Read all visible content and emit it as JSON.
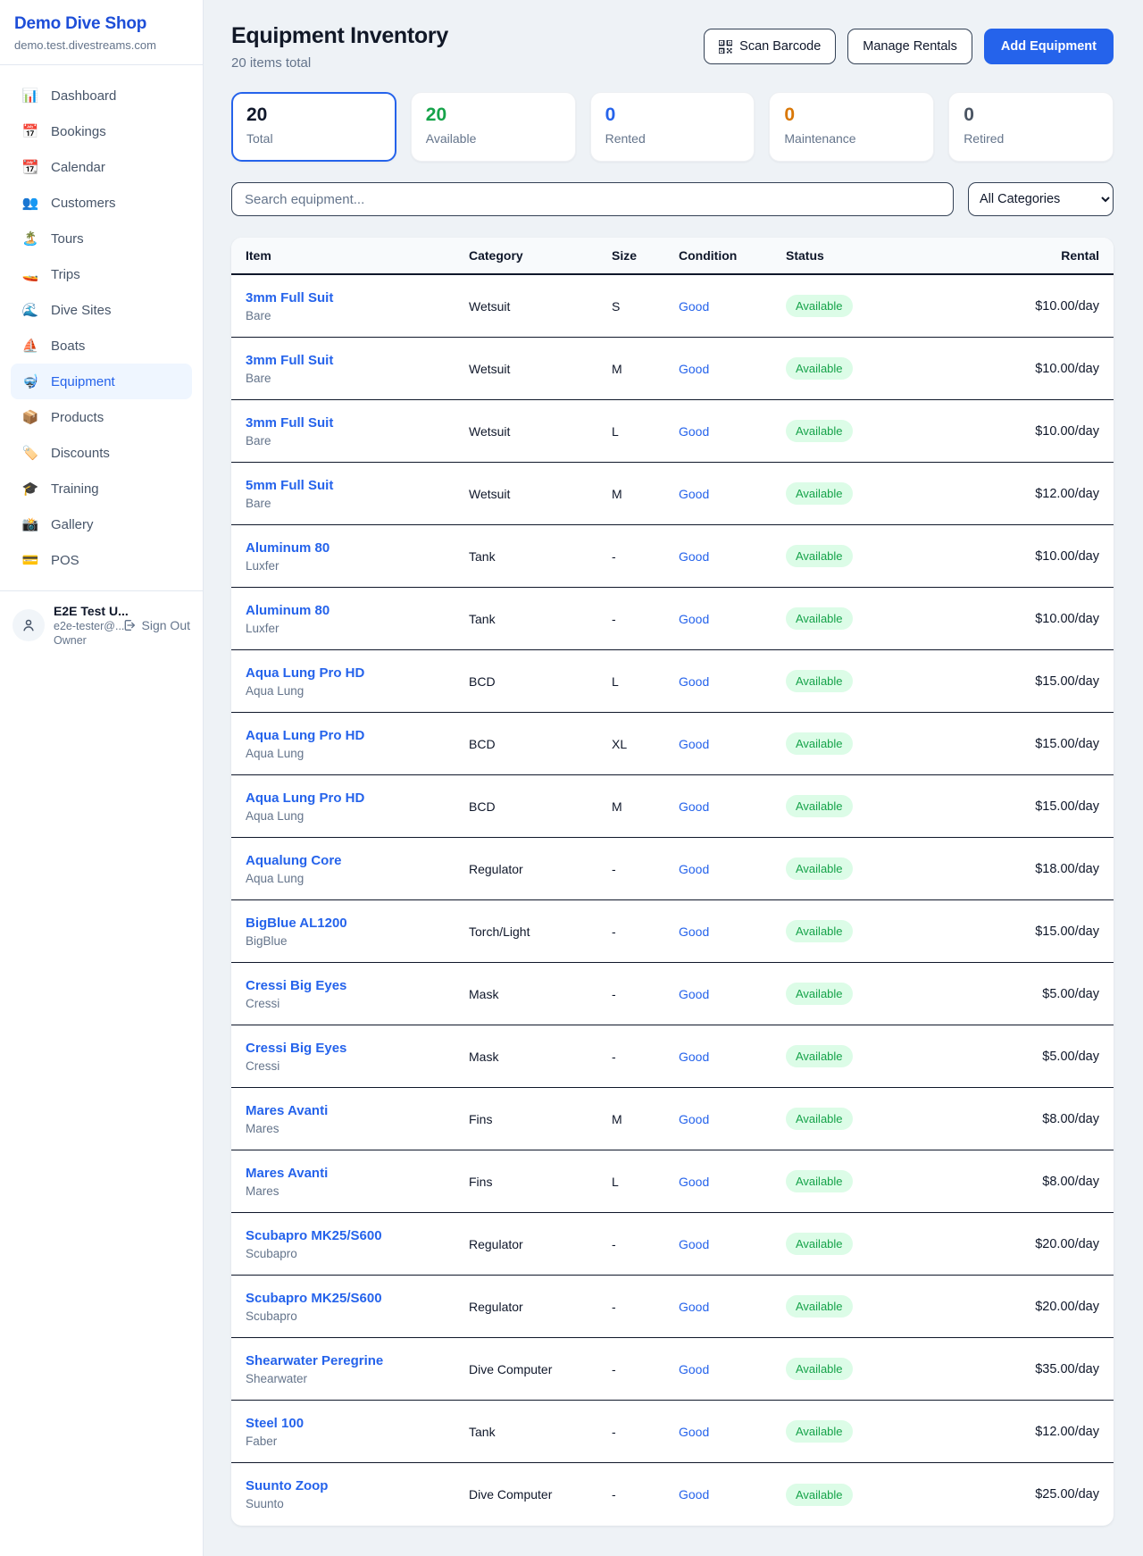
{
  "sidebar": {
    "brand": {
      "name": "Demo Dive Shop",
      "domain": "demo.test.divestreams.com"
    },
    "items": [
      {
        "label": "Dashboard",
        "icon": "dashboard-icon",
        "glyph": "📊",
        "active": false
      },
      {
        "label": "Bookings",
        "icon": "bookings-icon",
        "glyph": "📅",
        "active": false
      },
      {
        "label": "Calendar",
        "icon": "calendar-icon",
        "glyph": "📆",
        "active": false
      },
      {
        "label": "Customers",
        "icon": "customers-icon",
        "glyph": "👥",
        "active": false
      },
      {
        "label": "Tours",
        "icon": "tours-icon",
        "glyph": "🏝️",
        "active": false
      },
      {
        "label": "Trips",
        "icon": "trips-icon",
        "glyph": "🚤",
        "active": false
      },
      {
        "label": "Dive Sites",
        "icon": "dive-sites-icon",
        "glyph": "🌊",
        "active": false
      },
      {
        "label": "Boats",
        "icon": "boats-icon",
        "glyph": "⛵",
        "active": false
      },
      {
        "label": "Equipment",
        "icon": "equipment-icon",
        "glyph": "🤿",
        "active": true
      },
      {
        "label": "Products",
        "icon": "products-icon",
        "glyph": "📦",
        "active": false
      },
      {
        "label": "Discounts",
        "icon": "discounts-icon",
        "glyph": "🏷️",
        "active": false
      },
      {
        "label": "Training",
        "icon": "training-icon",
        "glyph": "🎓",
        "active": false
      },
      {
        "label": "Gallery",
        "icon": "gallery-icon",
        "glyph": "📸",
        "active": false
      },
      {
        "label": "POS",
        "icon": "pos-icon",
        "glyph": "💳",
        "active": false
      }
    ],
    "user": {
      "name": "E2E Test U...",
      "email": "e2e-tester@...",
      "role": "Owner",
      "sign_out_label": "Sign Out"
    }
  },
  "header": {
    "title": "Equipment Inventory",
    "subtitle": "20 items total",
    "scan_button": "Scan Barcode",
    "manage_button": "Manage Rentals",
    "add_button": "Add Equipment"
  },
  "stats": [
    {
      "value": "20",
      "label": "Total",
      "color": "#0f172a",
      "selected": true
    },
    {
      "value": "20",
      "label": "Available",
      "color": "#16a34a",
      "selected": false
    },
    {
      "value": "0",
      "label": "Rented",
      "color": "#2563eb",
      "selected": false
    },
    {
      "value": "0",
      "label": "Maintenance",
      "color": "#d97706",
      "selected": false
    },
    {
      "value": "0",
      "label": "Retired",
      "color": "#4b5563",
      "selected": false
    }
  ],
  "filters": {
    "search_placeholder": "Search equipment...",
    "category_selected": "All Categories"
  },
  "table": {
    "columns": [
      "Item",
      "Category",
      "Size",
      "Condition",
      "Status",
      "Rental"
    ],
    "rows": [
      {
        "item": "3mm Full Suit",
        "brand": "Bare",
        "category": "Wetsuit",
        "size": "S",
        "condition": "Good",
        "status": "Available",
        "rental": "$10.00/day"
      },
      {
        "item": "3mm Full Suit",
        "brand": "Bare",
        "category": "Wetsuit",
        "size": "M",
        "condition": "Good",
        "status": "Available",
        "rental": "$10.00/day"
      },
      {
        "item": "3mm Full Suit",
        "brand": "Bare",
        "category": "Wetsuit",
        "size": "L",
        "condition": "Good",
        "status": "Available",
        "rental": "$10.00/day"
      },
      {
        "item": "5mm Full Suit",
        "brand": "Bare",
        "category": "Wetsuit",
        "size": "M",
        "condition": "Good",
        "status": "Available",
        "rental": "$12.00/day"
      },
      {
        "item": "Aluminum 80",
        "brand": "Luxfer",
        "category": "Tank",
        "size": "-",
        "condition": "Good",
        "status": "Available",
        "rental": "$10.00/day"
      },
      {
        "item": "Aluminum 80",
        "brand": "Luxfer",
        "category": "Tank",
        "size": "-",
        "condition": "Good",
        "status": "Available",
        "rental": "$10.00/day"
      },
      {
        "item": "Aqua Lung Pro HD",
        "brand": "Aqua Lung",
        "category": "BCD",
        "size": "L",
        "condition": "Good",
        "status": "Available",
        "rental": "$15.00/day"
      },
      {
        "item": "Aqua Lung Pro HD",
        "brand": "Aqua Lung",
        "category": "BCD",
        "size": "XL",
        "condition": "Good",
        "status": "Available",
        "rental": "$15.00/day"
      },
      {
        "item": "Aqua Lung Pro HD",
        "brand": "Aqua Lung",
        "category": "BCD",
        "size": "M",
        "condition": "Good",
        "status": "Available",
        "rental": "$15.00/day"
      },
      {
        "item": "Aqualung Core",
        "brand": "Aqua Lung",
        "category": "Regulator",
        "size": "-",
        "condition": "Good",
        "status": "Available",
        "rental": "$18.00/day"
      },
      {
        "item": "BigBlue AL1200",
        "brand": "BigBlue",
        "category": "Torch/Light",
        "size": "-",
        "condition": "Good",
        "status": "Available",
        "rental": "$15.00/day"
      },
      {
        "item": "Cressi Big Eyes",
        "brand": "Cressi",
        "category": "Mask",
        "size": "-",
        "condition": "Good",
        "status": "Available",
        "rental": "$5.00/day"
      },
      {
        "item": "Cressi Big Eyes",
        "brand": "Cressi",
        "category": "Mask",
        "size": "-",
        "condition": "Good",
        "status": "Available",
        "rental": "$5.00/day"
      },
      {
        "item": "Mares Avanti",
        "brand": "Mares",
        "category": "Fins",
        "size": "M",
        "condition": "Good",
        "status": "Available",
        "rental": "$8.00/day"
      },
      {
        "item": "Mares Avanti",
        "brand": "Mares",
        "category": "Fins",
        "size": "L",
        "condition": "Good",
        "status": "Available",
        "rental": "$8.00/day"
      },
      {
        "item": "Scubapro MK25/S600",
        "brand": "Scubapro",
        "category": "Regulator",
        "size": "-",
        "condition": "Good",
        "status": "Available",
        "rental": "$20.00/day"
      },
      {
        "item": "Scubapro MK25/S600",
        "brand": "Scubapro",
        "category": "Regulator",
        "size": "-",
        "condition": "Good",
        "status": "Available",
        "rental": "$20.00/day"
      },
      {
        "item": "Shearwater Peregrine",
        "brand": "Shearwater",
        "category": "Dive Computer",
        "size": "-",
        "condition": "Good",
        "status": "Available",
        "rental": "$35.00/day"
      },
      {
        "item": "Steel 100",
        "brand": "Faber",
        "category": "Tank",
        "size": "-",
        "condition": "Good",
        "status": "Available",
        "rental": "$12.00/day"
      },
      {
        "item": "Suunto Zoop",
        "brand": "Suunto",
        "category": "Dive Computer",
        "size": "-",
        "condition": "Good",
        "status": "Available",
        "rental": "$25.00/day"
      }
    ]
  }
}
